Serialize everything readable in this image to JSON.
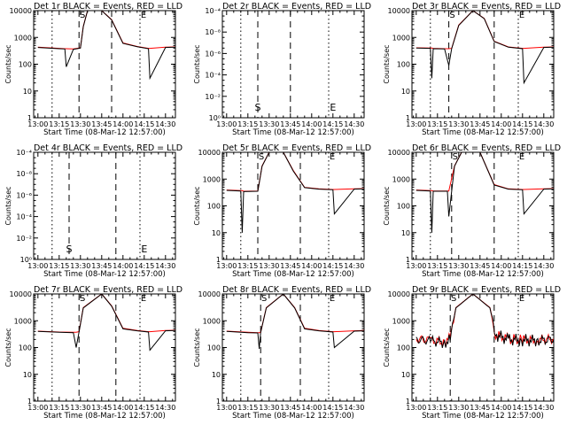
{
  "figure": {
    "xlabel": "Start Time (08-Mar-12 12:57:00)",
    "ylabel": "Counts/sec",
    "x_ticks": [
      "13:00",
      "13:15",
      "13:30",
      "13:45",
      "14:00",
      "14:15",
      "14:30"
    ],
    "y_ticks_counts": [
      "1",
      "10",
      "100",
      "1000",
      "10000"
    ],
    "y_ticks_empty": [
      "10⁰",
      "10⁻²",
      "10⁻⁴",
      "10⁻⁶",
      "10⁻⁸",
      "10⁻⁴"
    ],
    "marker_s": "S",
    "marker_e": "E",
    "colors": {
      "events": "#000000",
      "lld": "#ff0000",
      "axis": "#000000"
    }
  },
  "chart_data": [
    {
      "type": "line",
      "title": "Det 1r BLACK = Events, RED = LLD",
      "has_data": true,
      "xlim": [
        "12:57",
        "14:37"
      ],
      "ylim": [
        1,
        10000
      ],
      "yscale": "log",
      "x": [
        "13:00",
        "13:15",
        "13:19",
        "13:20",
        "13:25",
        "13:30",
        "13:32",
        "13:35",
        "13:45",
        "13:52",
        "14:00",
        "14:10",
        "14:18",
        "14:19",
        "14:30",
        "14:37"
      ],
      "series": [
        {
          "name": "Events",
          "color": "#000000",
          "values": [
            420,
            380,
            370,
            80,
            360,
            400,
            2500,
            10000,
            10000,
            4500,
            600,
            450,
            380,
            30,
            420,
            430
          ]
        },
        {
          "name": "LLD",
          "color": "#ff0000",
          "values": [
            430,
            390,
            380,
            380,
            370,
            410,
            2600,
            10000,
            10000,
            4600,
            620,
            460,
            390,
            390,
            430,
            440
          ]
        }
      ],
      "vlines_dashed": [
        "13:29",
        "13:52"
      ],
      "vlines_dotted": [
        "13:10",
        "14:12"
      ]
    },
    {
      "type": "line",
      "title": "Det 2r BLACK = Events, RED = LLD",
      "has_data": false,
      "xlim": [
        "12:57",
        "14:37"
      ],
      "ylim": [
        1,
        1e-08
      ],
      "vlines_dashed": [
        "13:22",
        "13:45"
      ],
      "vlines_dotted": [
        "13:10",
        "14:12"
      ],
      "markers": [
        {
          "label": "S",
          "x": "13:22"
        },
        {
          "label": "E",
          "x": "14:15"
        }
      ]
    },
    {
      "type": "line",
      "title": "Det 3r BLACK = Events, RED = LLD",
      "has_data": true,
      "xlim": [
        "12:57",
        "14:37"
      ],
      "ylim": [
        1,
        10000
      ],
      "yscale": "log",
      "x": [
        "13:00",
        "13:10",
        "13:11",
        "13:12",
        "13:20",
        "13:23",
        "13:25",
        "13:30",
        "13:40",
        "13:48",
        "13:55",
        "14:05",
        "14:15",
        "14:16",
        "14:30",
        "14:37"
      ],
      "series": [
        {
          "name": "Events",
          "color": "#000000",
          "values": [
            400,
            390,
            30,
            380,
            370,
            90,
            380,
            2800,
            10000,
            5000,
            700,
            430,
            380,
            20,
            420,
            430
          ]
        },
        {
          "name": "LLD",
          "color": "#ff0000",
          "values": [
            410,
            400,
            400,
            390,
            380,
            380,
            390,
            2900,
            10000,
            5100,
            720,
            440,
            390,
            390,
            430,
            440
          ]
        }
      ],
      "vlines_dashed": [
        "13:23",
        "13:55"
      ],
      "vlines_dotted": [
        "13:10",
        "14:12"
      ]
    },
    {
      "type": "line",
      "title": "Det 4r BLACK = Events, RED = LLD",
      "has_data": false,
      "xlim": [
        "12:57",
        "14:37"
      ],
      "ylim": [
        1,
        1e-08
      ],
      "vlines_dashed": [
        "13:22",
        "13:55"
      ],
      "vlines_dotted": [
        "13:10",
        "14:12"
      ],
      "markers": [
        {
          "label": "S",
          "x": "13:22"
        },
        {
          "label": "E",
          "x": "14:15"
        }
      ]
    },
    {
      "type": "line",
      "title": "Det 5r BLACK = Events, RED = LLD",
      "has_data": true,
      "xlim": [
        "12:57",
        "14:37"
      ],
      "ylim": [
        1,
        10000
      ],
      "yscale": "log",
      "x": [
        "13:00",
        "13:10",
        "13:11",
        "13:12",
        "13:22",
        "13:25",
        "13:30",
        "13:40",
        "13:47",
        "13:55",
        "14:05",
        "14:15",
        "14:16",
        "14:30",
        "14:37"
      ],
      "series": [
        {
          "name": "Events",
          "color": "#000000",
          "values": [
            380,
            360,
            10,
            340,
            350,
            3000,
            10000,
            10000,
            2000,
            480,
            420,
            400,
            50,
            420,
            430
          ]
        },
        {
          "name": "LLD",
          "color": "#ff0000",
          "values": [
            390,
            370,
            370,
            350,
            360,
            3100,
            10000,
            10000,
            2100,
            490,
            430,
            410,
            410,
            430,
            440
          ]
        }
      ],
      "vlines_dashed": [
        "13:22",
        "13:52"
      ],
      "vlines_dotted": [
        "13:10",
        "14:12"
      ]
    },
    {
      "type": "line",
      "title": "Det 6r BLACK = Events, RED = LLD",
      "has_data": true,
      "xlim": [
        "12:57",
        "14:37"
      ],
      "ylim": [
        1,
        10000
      ],
      "yscale": "log",
      "x": [
        "13:00",
        "13:10",
        "13:11",
        "13:12",
        "13:22",
        "13:23",
        "13:27",
        "13:32",
        "13:45",
        "13:55",
        "14:05",
        "14:15",
        "14:16",
        "14:30",
        "14:37"
      ],
      "series": [
        {
          "name": "Events",
          "color": "#000000",
          "values": [
            380,
            360,
            10,
            350,
            350,
            40,
            3000,
            10000,
            10000,
            600,
            420,
            400,
            50,
            420,
            430
          ]
        },
        {
          "name": "LLD",
          "color": "#ff0000",
          "values": [
            390,
            370,
            370,
            360,
            360,
            360,
            3100,
            10000,
            10000,
            620,
            430,
            410,
            410,
            430,
            440
          ]
        }
      ],
      "vlines_dashed": [
        "13:25",
        "13:55"
      ],
      "vlines_dotted": [
        "13:10",
        "14:12"
      ]
    },
    {
      "type": "line",
      "title": "Det 7r BLACK = Events, RED = LLD",
      "has_data": true,
      "xlim": [
        "12:57",
        "14:37"
      ],
      "ylim": [
        1,
        10000
      ],
      "yscale": "log",
      "x": [
        "13:00",
        "13:15",
        "13:25",
        "13:27",
        "13:29",
        "13:32",
        "13:45",
        "13:52",
        "14:00",
        "14:10",
        "14:18",
        "14:19",
        "14:30",
        "14:37"
      ],
      "series": [
        {
          "name": "Events",
          "color": "#000000",
          "values": [
            400,
            370,
            360,
            100,
            380,
            3000,
            10000,
            3500,
            500,
            420,
            380,
            80,
            420,
            430
          ]
        },
        {
          "name": "LLD",
          "color": "#ff0000",
          "values": [
            410,
            380,
            370,
            370,
            390,
            3100,
            10000,
            3600,
            520,
            430,
            390,
            390,
            430,
            440
          ]
        }
      ],
      "vlines_dashed": [
        "13:29",
        "13:55"
      ],
      "vlines_dotted": [
        "13:10",
        "14:12"
      ]
    },
    {
      "type": "line",
      "title": "Det 8r BLACK = Events, RED = LLD",
      "has_data": true,
      "xlim": [
        "12:57",
        "14:37"
      ],
      "ylim": [
        1,
        10000
      ],
      "yscale": "log",
      "x": [
        "13:00",
        "13:15",
        "13:22",
        "13:23",
        "13:24",
        "13:28",
        "13:40",
        "13:48",
        "13:55",
        "14:05",
        "14:15",
        "14:16",
        "14:30",
        "14:37"
      ],
      "series": [
        {
          "name": "Events",
          "color": "#000000",
          "values": [
            400,
            360,
            350,
            90,
            360,
            3000,
            10000,
            3000,
            500,
            420,
            380,
            100,
            410,
            420
          ]
        },
        {
          "name": "LLD",
          "color": "#ff0000",
          "values": [
            410,
            370,
            360,
            360,
            370,
            3100,
            10000,
            3100,
            520,
            430,
            390,
            390,
            420,
            430
          ]
        }
      ],
      "vlines_dashed": [
        "13:24",
        "13:52"
      ],
      "vlines_dotted": [
        "13:10",
        "14:12"
      ]
    },
    {
      "type": "line",
      "title": "Det 9r BLACK = Events, RED = LLD",
      "has_data": true,
      "xlim": [
        "12:57",
        "14:37"
      ],
      "ylim": [
        1,
        10000
      ],
      "yscale": "log",
      "noisy": true,
      "x": [
        "13:00",
        "13:10",
        "13:20",
        "13:24",
        "13:28",
        "13:40",
        "13:52",
        "13:56",
        "14:05",
        "14:15",
        "14:25",
        "14:37"
      ],
      "series": [
        {
          "name": "Events",
          "color": "#000000",
          "values": [
            200,
            180,
            150,
            200,
            3000,
            10000,
            3000,
            300,
            200,
            190,
            180,
            200
          ]
        },
        {
          "name": "LLD",
          "color": "#ff0000",
          "values": [
            210,
            190,
            160,
            210,
            3100,
            10000,
            3100,
            310,
            210,
            200,
            190,
            210
          ]
        }
      ],
      "vlines_dashed": [
        "13:24",
        "13:55"
      ],
      "vlines_dotted": [
        "13:10",
        "14:12"
      ]
    }
  ]
}
